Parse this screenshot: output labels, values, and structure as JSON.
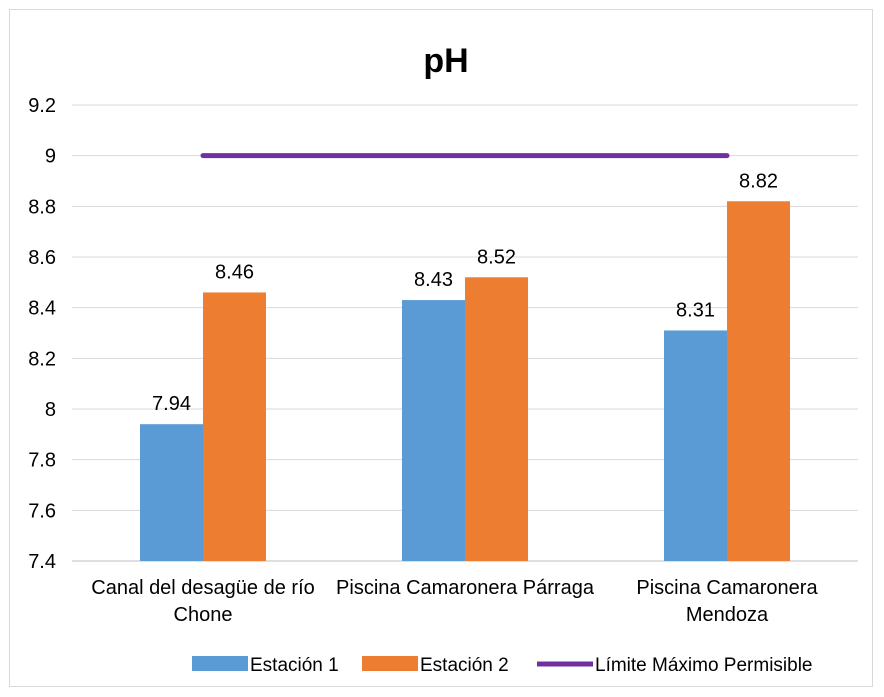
{
  "chart_data": {
    "type": "bar",
    "title": "pH",
    "xlabel": "",
    "ylabel": "",
    "ylim": [
      7.4,
      9.2
    ],
    "yticks": [
      "7.4",
      "7.6",
      "7.8",
      "8",
      "8.2",
      "8.4",
      "8.6",
      "8.8",
      "9",
      "9.2"
    ],
    "grid": true,
    "categories": [
      [
        "Canal del desagüe de río",
        "Chone"
      ],
      [
        "Piscina Camaronera Párraga"
      ],
      [
        "Piscina Camaronera",
        "Mendoza"
      ]
    ],
    "series": [
      {
        "name": "Estación 1",
        "values": [
          7.94,
          8.43,
          8.31
        ],
        "labels": [
          "7.94",
          "8.43",
          "8.31"
        ],
        "color": "#5b9bd5"
      },
      {
        "name": "Estación 2",
        "values": [
          8.46,
          8.52,
          8.82
        ],
        "labels": [
          "8.46",
          "8.52",
          "8.82"
        ],
        "color": "#ed7d31"
      }
    ],
    "reference_line": {
      "name": "Límite Máximo Permisible",
      "value": 9,
      "color": "#7030a0"
    },
    "legend_position": "bottom"
  }
}
